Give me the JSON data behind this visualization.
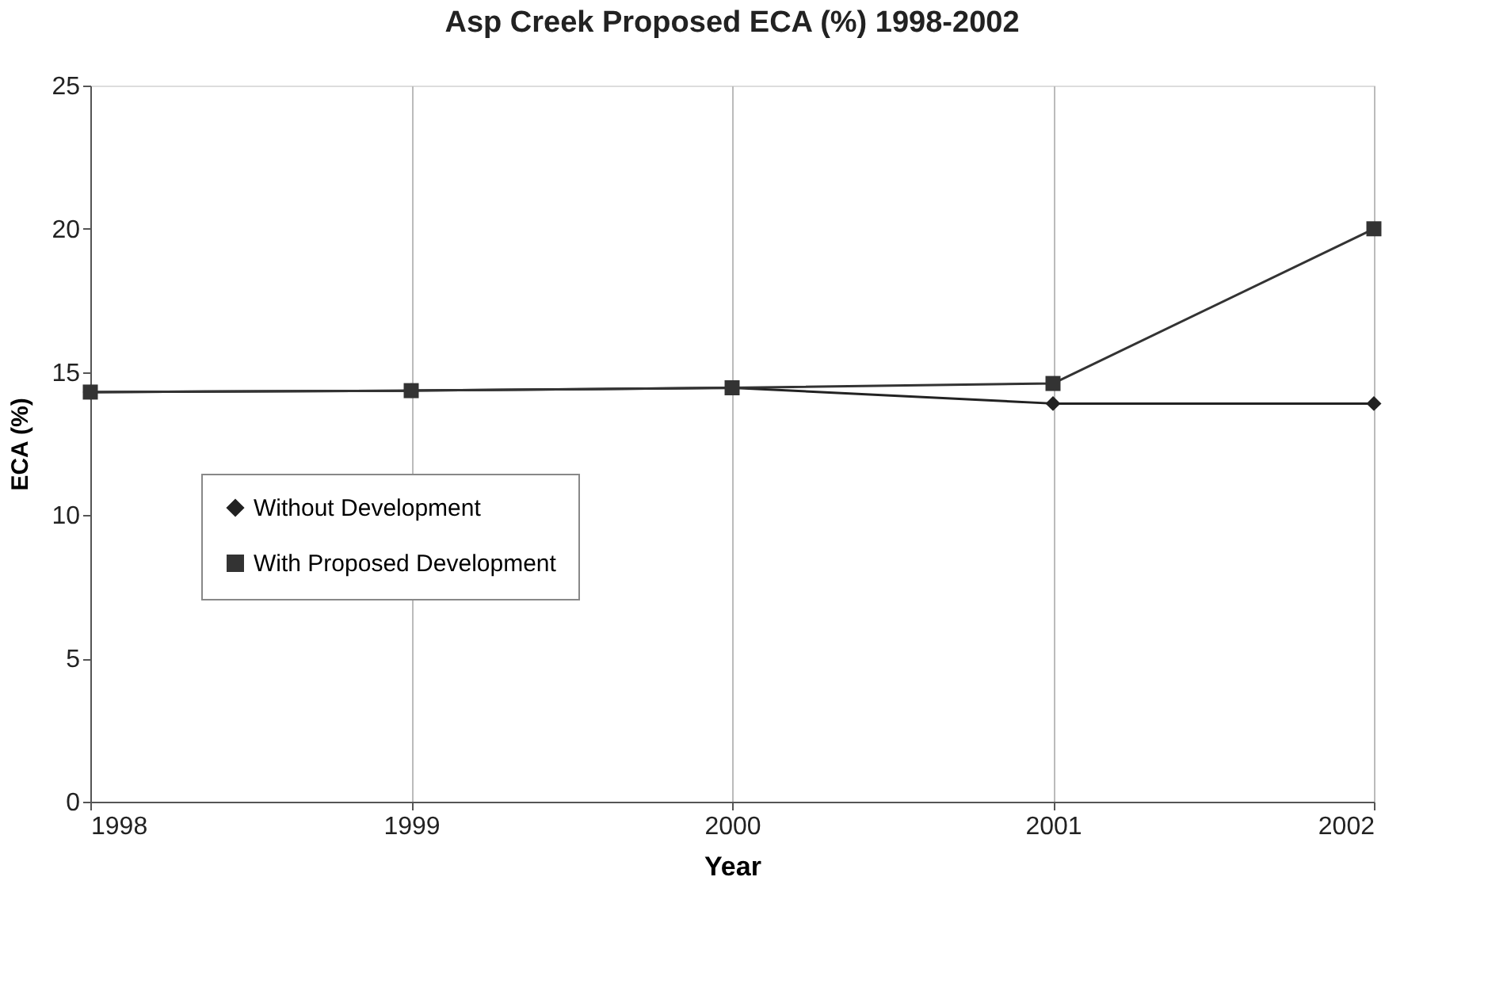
{
  "chart_data": {
    "type": "line",
    "title": "Asp Creek Proposed ECA (%) 1998-2002",
    "xlabel": "Year",
    "ylabel": "ECA (%)",
    "x": [
      1998,
      1999,
      2000,
      2001,
      2002
    ],
    "series": [
      {
        "name": "Without Development",
        "color": "#222222",
        "marker": "diamond",
        "values": [
          14.3,
          14.35,
          14.45,
          13.9,
          13.9
        ]
      },
      {
        "name": "With Proposed Development",
        "color": "#333333",
        "marker": "square",
        "values": [
          14.3,
          14.35,
          14.45,
          14.6,
          20.0
        ]
      }
    ],
    "xlim": [
      1998,
      2002
    ],
    "xticks": [
      1998,
      1999,
      2000,
      2001,
      2002
    ],
    "ylim": [
      0,
      25
    ],
    "yticks": [
      0,
      5,
      10,
      15,
      20,
      25
    ],
    "grid": "x",
    "legend": "left"
  }
}
